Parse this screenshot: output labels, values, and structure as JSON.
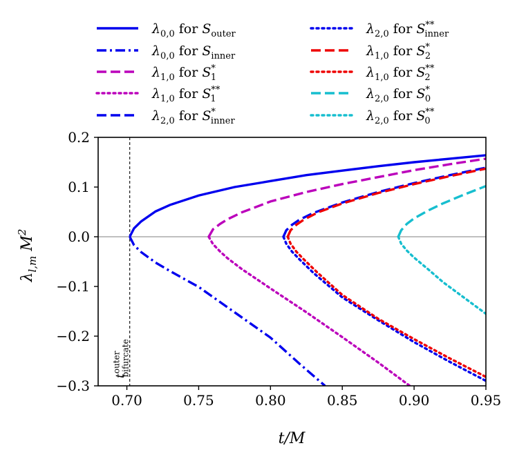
{
  "chart_data": {
    "type": "line",
    "xlabel": "t/M",
    "ylabel": "λ_{l,m} M^2",
    "xlim": [
      0.68,
      0.95
    ],
    "ylim": [
      -0.3,
      0.2
    ],
    "xticks": [
      "0.70",
      "0.75",
      "0.80",
      "0.85",
      "0.90",
      "0.95"
    ],
    "yticks": [
      "0.2",
      "0.1",
      "0.0",
      "−0.1",
      "−0.2",
      "−0.3"
    ],
    "xtick_values": [
      0.7,
      0.75,
      0.8,
      0.85,
      0.9,
      0.95
    ],
    "ytick_values": [
      0.2,
      0.1,
      0.0,
      -0.1,
      -0.2,
      -0.3
    ],
    "grid": false,
    "legend_placement": "top, two columns above plot",
    "zero_line": true,
    "annotation": {
      "text": "t_bifurcate^outer",
      "main": "t",
      "sup": "outer",
      "sub": "bifurcate",
      "x": 0.702
    },
    "series": [
      {
        "name": "λ0,0 for S_outer",
        "lam": "λ",
        "lam_sub": "0,0",
        "surf": "S",
        "surf_sub": "outer",
        "surf_sup": "",
        "color": "#0000ee",
        "style": "solid",
        "x": [
          0.702,
          0.705,
          0.71,
          0.72,
          0.73,
          0.75,
          0.775,
          0.8,
          0.825,
          0.85,
          0.875,
          0.9,
          0.925,
          0.95
        ],
        "y": [
          0.0,
          0.017,
          0.031,
          0.051,
          0.064,
          0.083,
          0.1,
          0.112,
          0.124,
          0.133,
          0.142,
          0.15,
          0.157,
          0.164
        ]
      },
      {
        "name": "λ0,0 for S_inner",
        "lam": "λ",
        "lam_sub": "0,0",
        "surf": "S",
        "surf_sub": "inner",
        "surf_sup": "",
        "color": "#0000ee",
        "style": "dashdot",
        "x": [
          0.702,
          0.705,
          0.71,
          0.72,
          0.73,
          0.75,
          0.775,
          0.8,
          0.82,
          0.838
        ],
        "y": [
          0.0,
          -0.017,
          -0.031,
          -0.052,
          -0.069,
          -0.101,
          -0.152,
          -0.203,
          -0.255,
          -0.3
        ]
      },
      {
        "name": "λ1,0 for S1*",
        "lam": "λ",
        "lam_sub": "1,0",
        "surf": "S",
        "surf_sub": "1",
        "surf_sup": "*",
        "color": "#bb00bb",
        "style": "dashed",
        "x": [
          0.757,
          0.76,
          0.765,
          0.77,
          0.78,
          0.8,
          0.825,
          0.85,
          0.875,
          0.9,
          0.925,
          0.95
        ],
        "y": [
          0.0,
          0.015,
          0.026,
          0.035,
          0.049,
          0.071,
          0.09,
          0.106,
          0.12,
          0.134,
          0.146,
          0.157
        ]
      },
      {
        "name": "λ1,0 for S1**",
        "lam": "λ",
        "lam_sub": "1,0",
        "surf": "S",
        "surf_sub": "1",
        "surf_sup": "**",
        "color": "#bb00bb",
        "style": "dotted",
        "x": [
          0.757,
          0.76,
          0.765,
          0.77,
          0.78,
          0.8,
          0.825,
          0.85,
          0.875,
          0.897
        ],
        "y": [
          0.0,
          -0.015,
          -0.03,
          -0.043,
          -0.065,
          -0.104,
          -0.152,
          -0.202,
          -0.253,
          -0.3
        ]
      },
      {
        "name": "λ2,0 for S_inner*",
        "lam": "λ",
        "lam_sub": "2,0",
        "surf": "S",
        "surf_sub": "inner",
        "surf_sup": "*",
        "color": "#0000ee",
        "style": "dashed",
        "x": [
          0.809,
          0.811,
          0.815,
          0.82,
          0.83,
          0.85,
          0.875,
          0.9,
          0.925,
          0.95
        ],
        "y": [
          0.0,
          0.013,
          0.024,
          0.034,
          0.048,
          0.069,
          0.09,
          0.108,
          0.124,
          0.139
        ]
      },
      {
        "name": "λ2,0 for S_inner**",
        "lam": "λ",
        "lam_sub": "2,0",
        "surf": "S",
        "surf_sub": "inner",
        "surf_sup": "**",
        "color": "#0000ee",
        "style": "dotted",
        "x": [
          0.809,
          0.811,
          0.815,
          0.82,
          0.83,
          0.85,
          0.875,
          0.9,
          0.925,
          0.95
        ],
        "y": [
          0.0,
          -0.014,
          -0.03,
          -0.045,
          -0.073,
          -0.122,
          -0.168,
          -0.212,
          -0.252,
          -0.29
        ]
      },
      {
        "name": "λ1,0 for S2*",
        "lam": "λ",
        "lam_sub": "1,0",
        "surf": "S",
        "surf_sub": "2",
        "surf_sup": "*",
        "color": "#ee0000",
        "style": "dashed",
        "x": [
          0.812,
          0.814,
          0.818,
          0.823,
          0.833,
          0.85,
          0.875,
          0.9,
          0.925,
          0.95
        ],
        "y": [
          0.0,
          0.013,
          0.024,
          0.034,
          0.049,
          0.067,
          0.088,
          0.106,
          0.122,
          0.137
        ]
      },
      {
        "name": "λ1,0 for S2**",
        "lam": "λ",
        "lam_sub": "1,0",
        "surf": "S",
        "surf_sub": "2",
        "surf_sup": "**",
        "color": "#ee0000",
        "style": "dotted",
        "x": [
          0.812,
          0.814,
          0.818,
          0.823,
          0.833,
          0.85,
          0.875,
          0.9,
          0.925,
          0.95
        ],
        "y": [
          0.0,
          -0.014,
          -0.03,
          -0.045,
          -0.073,
          -0.117,
          -0.165,
          -0.206,
          -0.245,
          -0.282
        ]
      },
      {
        "name": "λ2,0 for S0*",
        "lam": "λ",
        "lam_sub": "2,0",
        "surf": "S",
        "surf_sub": "0",
        "surf_sup": "*",
        "color": "#17becf",
        "style": "dashed",
        "x": [
          0.889,
          0.891,
          0.895,
          0.9,
          0.91,
          0.92,
          0.935,
          0.95
        ],
        "y": [
          0.0,
          0.013,
          0.026,
          0.037,
          0.053,
          0.067,
          0.085,
          0.102
        ]
      },
      {
        "name": "λ2,0 for S0**",
        "lam": "λ",
        "lam_sub": "2,0",
        "surf": "S",
        "surf_sub": "0",
        "surf_sup": "**",
        "color": "#17becf",
        "style": "dotted",
        "x": [
          0.889,
          0.891,
          0.895,
          0.9,
          0.91,
          0.92,
          0.935,
          0.95
        ],
        "y": [
          0.0,
          -0.014,
          -0.028,
          -0.042,
          -0.066,
          -0.091,
          -0.123,
          -0.155
        ]
      }
    ]
  }
}
